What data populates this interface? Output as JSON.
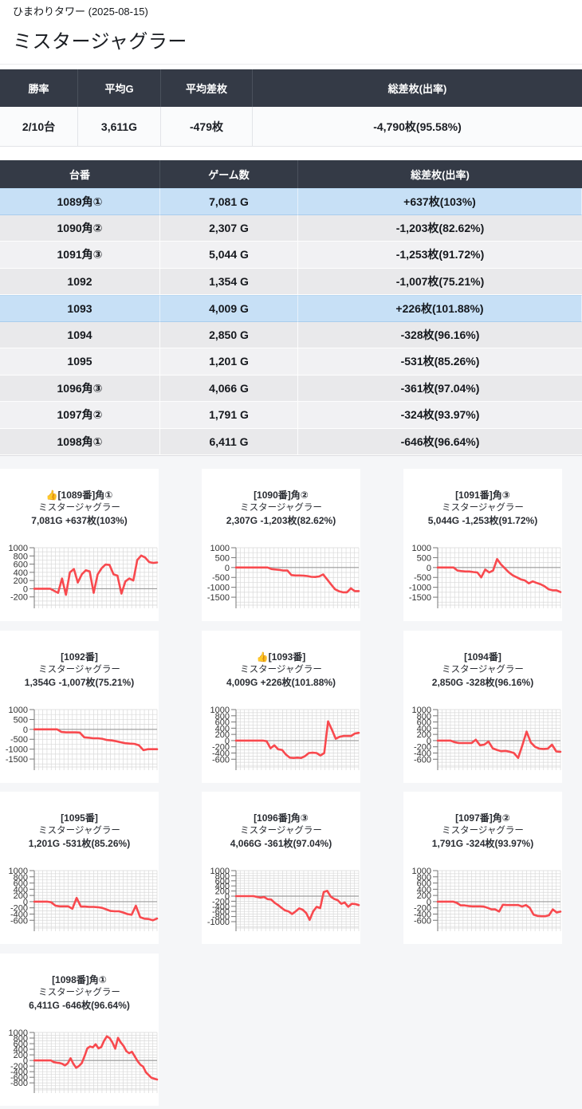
{
  "page": {
    "breadcrumb": "ひまわりタワー (2025-08-15)",
    "title": "ミスタージャグラー"
  },
  "colors": {
    "table_header_bg": "#343a46",
    "win_row_bg": "#c7e0f6",
    "row_shade_dark": "#e9e9eb",
    "row_shade_light": "#f1f1f3",
    "line_red": "#f8494e",
    "section_bg": "#f5f6f8",
    "grid_line": "#d9d9d9",
    "zero_line": "#9a9a9a",
    "axis_line": "#777777"
  },
  "summary_table": {
    "headers": [
      "勝率",
      "平均G",
      "平均差枚",
      "総差枚(出率)"
    ],
    "values": [
      "2/10台",
      "3,611G",
      "-479枚",
      "-4,790枚(95.58%)"
    ]
  },
  "machine_table": {
    "headers": [
      "台番",
      "ゲーム数",
      "総差枚(出率)"
    ],
    "rows": [
      {
        "dai": "1089角①",
        "games": "7,081 G",
        "diff": "+637枚(103%)",
        "win": true
      },
      {
        "dai": "1090角②",
        "games": "2,307 G",
        "diff": "-1,203枚(82.62%)",
        "win": false
      },
      {
        "dai": "1091角③",
        "games": "5,044 G",
        "diff": "-1,253枚(91.72%)",
        "win": false
      },
      {
        "dai": "1092",
        "games": "1,354 G",
        "diff": "-1,007枚(75.21%)",
        "win": false
      },
      {
        "dai": "1093",
        "games": "4,009 G",
        "diff": "+226枚(101.88%)",
        "win": true
      },
      {
        "dai": "1094",
        "games": "2,850 G",
        "diff": "-328枚(96.16%)",
        "win": false
      },
      {
        "dai": "1095",
        "games": "1,201 G",
        "diff": "-531枚(85.26%)",
        "win": false
      },
      {
        "dai": "1096角③",
        "games": "4,066 G",
        "diff": "-361枚(97.04%)",
        "win": false
      },
      {
        "dai": "1097角②",
        "games": "1,791 G",
        "diff": "-324枚(93.97%)",
        "win": false
      },
      {
        "dai": "1098角①",
        "games": "6,411 G",
        "diff": "-646枚(96.64%)",
        "win": false
      }
    ]
  },
  "chart_data": [
    {
      "type": "line",
      "machine_no": "1089",
      "title_line1": "👍[1089番]角①",
      "title_line2": "ミスタージャグラー",
      "title_line3": "7,081G +637枚(103%)",
      "y_ticks": [
        1000,
        800,
        600,
        400,
        200,
        0,
        -200
      ],
      "ylim": [
        -400,
        1000
      ],
      "minor_step": 100,
      "xlabel": "",
      "ylabel": "",
      "legend": "none",
      "values": [
        0,
        0,
        0,
        0,
        0,
        -50,
        -100,
        250,
        -150,
        400,
        480,
        150,
        350,
        450,
        420,
        -100,
        350,
        500,
        590,
        580,
        350,
        320,
        -120,
        180,
        250,
        200,
        700,
        810,
        760,
        650,
        630,
        640
      ]
    },
    {
      "type": "line",
      "machine_no": "1090",
      "title_line1": "[1090番]角②",
      "title_line2": "ミスタージャグラー",
      "title_line3": "2,307G -1,203枚(82.62%)",
      "y_ticks": [
        1000,
        500,
        0,
        -500,
        -1000,
        -1500
      ],
      "ylim": [
        -1900,
        1000
      ],
      "minor_step": 250,
      "xlabel": "",
      "ylabel": "",
      "legend": "none",
      "values": [
        0,
        0,
        0,
        0,
        0,
        0,
        0,
        0,
        0,
        -80,
        -100,
        -120,
        -150,
        -150,
        -380,
        -400,
        -400,
        -410,
        -430,
        -470,
        -480,
        -450,
        -350,
        -600,
        -850,
        -1100,
        -1200,
        -1250,
        -1250,
        -1050,
        -1190,
        -1190
      ]
    },
    {
      "type": "line",
      "machine_no": "1091",
      "title_line1": "[1091番]角③",
      "title_line2": "ミスタージャグラー",
      "title_line3": "5,044G -1,253枚(91.72%)",
      "y_ticks": [
        1000,
        500,
        0,
        -500,
        -1000,
        -1500
      ],
      "ylim": [
        -1900,
        1000
      ],
      "minor_step": 250,
      "xlabel": "",
      "ylabel": "",
      "legend": "none",
      "values": [
        0,
        0,
        0,
        0,
        0,
        -150,
        -180,
        -200,
        -200,
        -230,
        -250,
        -500,
        -100,
        -250,
        -150,
        430,
        150,
        -50,
        -250,
        -400,
        -500,
        -600,
        -650,
        -800,
        -700,
        -780,
        -850,
        -950,
        -1100,
        -1150,
        -1150,
        -1240
      ]
    },
    {
      "type": "line",
      "machine_no": "1092",
      "title_line1": "[1092番]",
      "title_line2": "ミスタージャグラー",
      "title_line3": "1,354G -1,007枚(75.21%)",
      "y_ticks": [
        1000,
        500,
        0,
        -500,
        -1000,
        -1500
      ],
      "ylim": [
        -1900,
        1000
      ],
      "minor_step": 250,
      "xlabel": "",
      "ylabel": "",
      "legend": "none",
      "values": [
        0,
        0,
        0,
        0,
        0,
        0,
        -130,
        -150,
        -150,
        -150,
        -160,
        -400,
        -420,
        -450,
        -450,
        -480,
        -540,
        -560,
        -600,
        -650,
        -700,
        -720,
        -730,
        -800,
        -1050,
        -1000,
        -1000,
        -1000
      ]
    },
    {
      "type": "line",
      "machine_no": "1093",
      "title_line1": "👍[1093番]",
      "title_line2": "ミスタージャグラー",
      "title_line3": "4,009G +226枚(101.88%)",
      "y_ticks": [
        1000,
        800,
        600,
        400,
        200,
        0,
        -200,
        -400,
        -600
      ],
      "ylim": [
        -850,
        1000
      ],
      "minor_step": 100,
      "xlabel": "",
      "ylabel": "",
      "legend": "none",
      "values": [
        0,
        0,
        0,
        0,
        0,
        0,
        0,
        0,
        -20,
        -250,
        -150,
        -280,
        -300,
        -450,
        -550,
        -560,
        -550,
        -560,
        -500,
        -400,
        -390,
        -400,
        -480,
        -400,
        620,
        350,
        60,
        120,
        150,
        150,
        150,
        230,
        250
      ]
    },
    {
      "type": "line",
      "machine_no": "1094",
      "title_line1": "[1094番]",
      "title_line2": "ミスタージャグラー",
      "title_line3": "2,850G -328枚(96.16%)",
      "y_ticks": [
        1000,
        800,
        600,
        400,
        200,
        0,
        -200,
        -400,
        -600
      ],
      "ylim": [
        -850,
        1000
      ],
      "minor_step": 100,
      "xlabel": "",
      "ylabel": "",
      "legend": "none",
      "values": [
        0,
        0,
        0,
        0,
        -50,
        -80,
        -80,
        -80,
        -80,
        30,
        -150,
        -130,
        -30,
        -250,
        -300,
        -340,
        -330,
        -360,
        -400,
        -560,
        -150,
        290,
        -60,
        -200,
        -260,
        -270,
        -260,
        -130,
        -350,
        -360
      ]
    },
    {
      "type": "line",
      "machine_no": "1095",
      "title_line1": "[1095番]",
      "title_line2": "ミスタージャグラー",
      "title_line3": "1,201G -531枚(85.26%)",
      "y_ticks": [
        1000,
        800,
        600,
        400,
        200,
        0,
        -200,
        -400,
        -600
      ],
      "ylim": [
        -850,
        1000
      ],
      "minor_step": 100,
      "xlabel": "",
      "ylabel": "",
      "legend": "none",
      "values": [
        0,
        0,
        0,
        0,
        -20,
        -130,
        -150,
        -150,
        -150,
        -230,
        120,
        -160,
        -160,
        -170,
        -170,
        -180,
        -200,
        -250,
        -300,
        -310,
        -310,
        -350,
        -400,
        -420,
        -130,
        -500,
        -550,
        -560,
        -600,
        -545
      ]
    },
    {
      "type": "line",
      "machine_no": "1096",
      "title_line1": "[1096番]角③",
      "title_line2": "ミスタージャグラー",
      "title_line3": "4,066G -361枚(97.04%)",
      "y_ticks": [
        1000,
        800,
        600,
        400,
        200,
        0,
        -200,
        -400,
        -600,
        -800,
        -1000
      ],
      "ylim": [
        -1250,
        1000
      ],
      "minor_step": 100,
      "xlabel": "",
      "ylabel": "",
      "legend": "none",
      "values": [
        0,
        0,
        0,
        0,
        0,
        0,
        -30,
        -60,
        -30,
        -120,
        -130,
        -260,
        -350,
        -460,
        -560,
        -600,
        -700,
        -600,
        -480,
        -530,
        -660,
        -930,
        -600,
        -420,
        -470,
        160,
        210,
        -20,
        -110,
        -160,
        -300,
        -250,
        -420,
        -300,
        -310,
        -350
      ]
    },
    {
      "type": "line",
      "machine_no": "1097",
      "title_line1": "[1097番]角②",
      "title_line2": "ミスタージャグラー",
      "title_line3": "1,791G -324枚(93.97%)",
      "y_ticks": [
        1000,
        800,
        600,
        400,
        200,
        0,
        -200,
        -400,
        -600
      ],
      "ylim": [
        -850,
        1000
      ],
      "minor_step": 100,
      "xlabel": "",
      "ylabel": "",
      "legend": "none",
      "values": [
        0,
        0,
        0,
        0,
        0,
        -40,
        -120,
        -120,
        -140,
        -150,
        -150,
        -150,
        -160,
        -200,
        -250,
        -250,
        -320,
        -100,
        -110,
        -110,
        -110,
        -110,
        -160,
        -110,
        -200,
        -420,
        -460,
        -470,
        -470,
        -440,
        -250,
        -350,
        -320
      ]
    },
    {
      "type": "line",
      "machine_no": "1098",
      "title_line1": "[1098番]角①",
      "title_line2": "ミスタージャグラー",
      "title_line3": "6,411G -646枚(96.64%)",
      "y_ticks": [
        1000,
        800,
        600,
        400,
        200,
        0,
        -200,
        -400,
        -600,
        -800
      ],
      "ylim": [
        -1050,
        1000
      ],
      "minor_step": 100,
      "xlabel": "",
      "ylabel": "",
      "legend": "none",
      "values": [
        0,
        0,
        0,
        0,
        0,
        0,
        0,
        -60,
        -80,
        -90,
        -120,
        -180,
        -100,
        80,
        -120,
        -260,
        -200,
        -100,
        150,
        430,
        500,
        470,
        580,
        430,
        480,
        700,
        860,
        800,
        640,
        420,
        810,
        640,
        520,
        330,
        260,
        310,
        150,
        -20,
        -150,
        -220,
        -420,
        -520,
        -620,
        -650,
        -680
      ]
    }
  ]
}
